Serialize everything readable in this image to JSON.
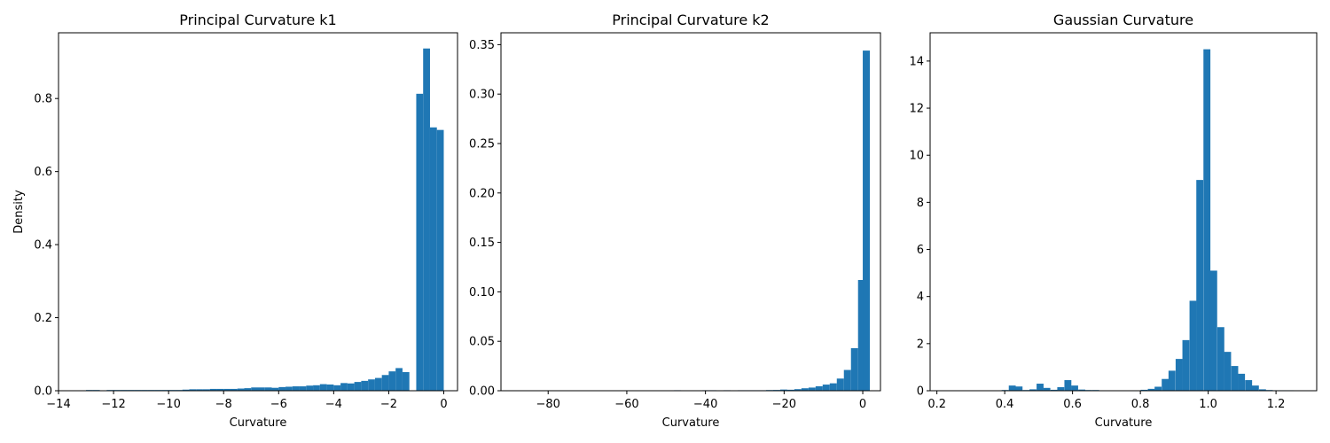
{
  "colors": {
    "bar": "#1f77b4",
    "axis": "#000000",
    "background": "#ffffff"
  },
  "chart_data": [
    {
      "type": "bar",
      "title": "Principal Curvature k1",
      "xlabel": "Curvature",
      "ylabel": "Density",
      "xlim": [
        -14,
        0.5
      ],
      "ylim": [
        0,
        0.98
      ],
      "xticks": [
        -14,
        -12,
        -10,
        -8,
        -6,
        -4,
        -2,
        0
      ],
      "xtick_labels": [
        "−14",
        "−12",
        "−10",
        "−8",
        "−6",
        "−4",
        "−2",
        "0"
      ],
      "yticks": [
        0,
        0.2,
        0.4,
        0.6,
        0.8
      ],
      "ytick_labels": [
        "0.0",
        "0.2",
        "0.4",
        "0.6",
        "0.8"
      ],
      "bin_width": 0.25,
      "bins": [
        [
          -13.0,
          0.002
        ],
        [
          -12.75,
          0.002
        ],
        [
          -12.5,
          0.0
        ],
        [
          -12.25,
          0.002
        ],
        [
          -12.0,
          0.002
        ],
        [
          -11.75,
          0.002
        ],
        [
          -11.5,
          0.002
        ],
        [
          -11.25,
          0.002
        ],
        [
          -11.0,
          0.002
        ],
        [
          -10.75,
          0.002
        ],
        [
          -10.5,
          0.002
        ],
        [
          -10.25,
          0.002
        ],
        [
          -10.0,
          0.002
        ],
        [
          -9.75,
          0.002
        ],
        [
          -9.5,
          0.003
        ],
        [
          -9.25,
          0.004
        ],
        [
          -9.0,
          0.004
        ],
        [
          -8.75,
          0.004
        ],
        [
          -8.5,
          0.005
        ],
        [
          -8.25,
          0.005
        ],
        [
          -8.0,
          0.005
        ],
        [
          -7.75,
          0.005
        ],
        [
          -7.5,
          0.006
        ],
        [
          -7.25,
          0.007
        ],
        [
          -7.0,
          0.009
        ],
        [
          -6.75,
          0.009
        ],
        [
          -6.5,
          0.009
        ],
        [
          -6.25,
          0.008
        ],
        [
          -6.0,
          0.01
        ],
        [
          -5.75,
          0.011
        ],
        [
          -5.5,
          0.012
        ],
        [
          -5.25,
          0.012
        ],
        [
          -5.0,
          0.014
        ],
        [
          -4.75,
          0.015
        ],
        [
          -4.5,
          0.018
        ],
        [
          -4.25,
          0.017
        ],
        [
          -4.0,
          0.015
        ],
        [
          -3.75,
          0.021
        ],
        [
          -3.5,
          0.02
        ],
        [
          -3.25,
          0.024
        ],
        [
          -3.0,
          0.027
        ],
        [
          -2.75,
          0.031
        ],
        [
          -2.5,
          0.035
        ],
        [
          -2.25,
          0.043
        ],
        [
          -2.0,
          0.053
        ],
        [
          -1.75,
          0.062
        ],
        [
          -1.5,
          0.051
        ],
        [
          -1.25,
          0.0
        ],
        [
          -1.0,
          0.813
        ],
        [
          -0.75,
          0.937
        ],
        [
          -0.5,
          0.721
        ],
        [
          -0.25,
          0.714
        ]
      ]
    },
    {
      "type": "bar",
      "title": "Principal Curvature k2",
      "xlabel": "Curvature",
      "ylabel": "",
      "xlim": [
        -92,
        4.5
      ],
      "ylim": [
        0,
        0.362
      ],
      "xticks": [
        -80,
        -60,
        -40,
        -20,
        0
      ],
      "xtick_labels": [
        "−80",
        "−60",
        "−40",
        "−20",
        "0"
      ],
      "yticks": [
        0,
        0.05,
        0.1,
        0.15,
        0.2,
        0.25,
        0.3,
        0.35
      ],
      "ytick_labels": [
        "0.00",
        "0.05",
        "0.10",
        "0.15",
        "0.20",
        "0.25",
        "0.30",
        "0.35"
      ],
      "bin_width": 1.8,
      "bins": [
        [
          -48.0,
          0.0005
        ],
        [
          -40.8,
          0.0005
        ],
        [
          -39.0,
          0.0005
        ],
        [
          -35.4,
          0.0005
        ],
        [
          -31.8,
          0.0005
        ],
        [
          -30.0,
          0.0005
        ],
        [
          -28.2,
          0.0005
        ],
        [
          -26.4,
          0.0005
        ],
        [
          -24.6,
          0.0007
        ],
        [
          -22.8,
          0.0008
        ],
        [
          -21.0,
          0.0012
        ],
        [
          -19.2,
          0.001
        ],
        [
          -17.4,
          0.0016
        ],
        [
          -15.6,
          0.0025
        ],
        [
          -13.8,
          0.0032
        ],
        [
          -12.0,
          0.0045
        ],
        [
          -10.2,
          0.0062
        ],
        [
          -8.4,
          0.0075
        ],
        [
          -6.6,
          0.0123
        ],
        [
          -4.8,
          0.021
        ],
        [
          -3.0,
          0.043
        ],
        [
          -1.2,
          0.112
        ],
        [
          0.0,
          0.344
        ]
      ]
    },
    {
      "type": "bar",
      "title": "Gaussian Curvature",
      "xlabel": "Curvature",
      "ylabel": "",
      "xlim": [
        0.18,
        1.32
      ],
      "ylim": [
        0,
        15.2
      ],
      "xticks": [
        0.2,
        0.4,
        0.6,
        0.8,
        1.0,
        1.2
      ],
      "xtick_labels": [
        "0.2",
        "0.4",
        "0.6",
        "0.8",
        "1.0",
        "1.2"
      ],
      "yticks": [
        0,
        2,
        4,
        6,
        8,
        10,
        12,
        14
      ],
      "ytick_labels": [
        "0",
        "2",
        "4",
        "6",
        "8",
        "10",
        "12",
        "14"
      ],
      "bin_width": 0.0205,
      "bins": [
        [
          0.391,
          0.03
        ],
        [
          0.412,
          0.22
        ],
        [
          0.432,
          0.18
        ],
        [
          0.453,
          0.03
        ],
        [
          0.473,
          0.06
        ],
        [
          0.494,
          0.3
        ],
        [
          0.514,
          0.12
        ],
        [
          0.535,
          0.04
        ],
        [
          0.555,
          0.15
        ],
        [
          0.576,
          0.45
        ],
        [
          0.596,
          0.22
        ],
        [
          0.617,
          0.05
        ],
        [
          0.637,
          0.03
        ],
        [
          0.658,
          0.03
        ],
        [
          0.801,
          0.04
        ],
        [
          0.822,
          0.08
        ],
        [
          0.842,
          0.17
        ],
        [
          0.863,
          0.5
        ],
        [
          0.883,
          0.85
        ],
        [
          0.904,
          1.35
        ],
        [
          0.924,
          2.15
        ],
        [
          0.945,
          3.82
        ],
        [
          0.965,
          8.95
        ],
        [
          0.986,
          14.5
        ],
        [
          1.006,
          5.1
        ],
        [
          1.027,
          2.7
        ],
        [
          1.047,
          1.65
        ],
        [
          1.068,
          1.05
        ],
        [
          1.088,
          0.72
        ],
        [
          1.109,
          0.45
        ],
        [
          1.129,
          0.22
        ],
        [
          1.15,
          0.06
        ],
        [
          1.17,
          0.03
        ],
        [
          1.191,
          0.02
        ],
        [
          1.211,
          0.02
        ],
        [
          1.232,
          0.02
        ]
      ]
    }
  ]
}
